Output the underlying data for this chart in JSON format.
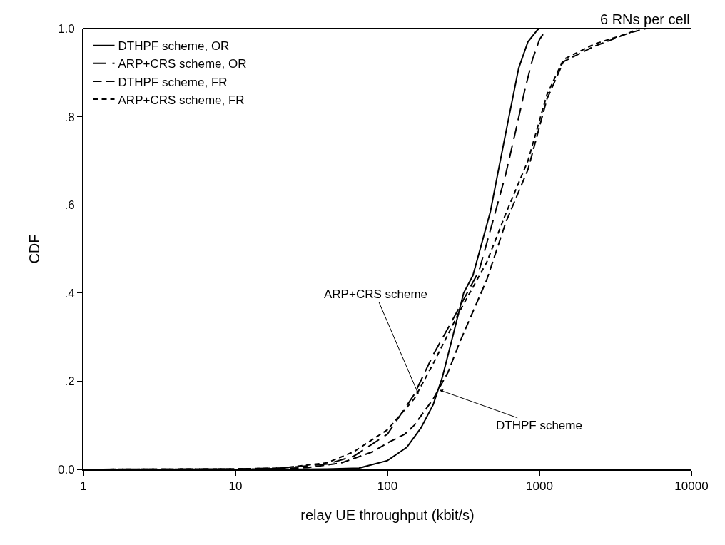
{
  "chart_data": {
    "type": "line",
    "xlabel": "relay UE throughput (kbit/s)",
    "ylabel": "CDF",
    "log": "x",
    "xlim": [
      1,
      10000
    ],
    "xticks": [
      1,
      10,
      100,
      1000,
      10000
    ],
    "ylim": [
      0,
      1
    ],
    "yticks": [
      {
        "value": 0,
        "label": "0.0"
      },
      {
        "value": 0.2,
        "label": ".2"
      },
      {
        "value": 0.4,
        "label": ".4"
      },
      {
        "value": 0.6,
        "label": ".6"
      },
      {
        "value": 0.8,
        "label": ".8"
      },
      {
        "value": 1,
        "label": "1.0"
      }
    ],
    "legend": "top left",
    "marker": "none",
    "series": [
      {
        "name": "DTHPF scheme, OR",
        "color": "#000000",
        "line_style": "solid",
        "x": [
          1,
          20,
          40,
          65,
          100,
          134,
          166,
          200,
          230,
          275,
          317,
          365,
          475,
          545,
          630,
          730,
          840,
          970,
          1000
        ],
        "values": [
          0,
          0,
          0.001,
          0.003,
          0.02,
          0.05,
          0.094,
          0.147,
          0.21,
          0.315,
          0.4,
          0.44,
          0.584,
          0.69,
          0.8,
          0.91,
          0.97,
          0.997,
          1.0
        ]
      },
      {
        "name": "ARP+CRS scheme, OR",
        "color": "#000000",
        "line_style": "dashed",
        "x": [
          1,
          10,
          20,
          40,
          60,
          100,
          150,
          200,
          250,
          300,
          400,
          500,
          600,
          700,
          800,
          900,
          1000,
          1120
        ],
        "values": [
          0,
          0.001,
          0.003,
          0.012,
          0.03,
          0.08,
          0.17,
          0.26,
          0.32,
          0.37,
          0.45,
          0.57,
          0.67,
          0.77,
          0.86,
          0.93,
          0.975,
          1.0
        ]
      },
      {
        "name": "DTHPF scheme, FR",
        "color": "#000000",
        "line_style": "dashed",
        "x": [
          1.5,
          15,
          30,
          50,
          80,
          100,
          130,
          150,
          200,
          250,
          300,
          450,
          600,
          840,
          1120,
          1440,
          2300,
          3900,
          5000
        ],
        "values": [
          0,
          0.001,
          0.004,
          0.015,
          0.04,
          0.06,
          0.08,
          0.1,
          0.16,
          0.22,
          0.29,
          0.43,
          0.56,
          0.68,
          0.84,
          0.925,
          0.96,
          0.99,
          1.0
        ]
      },
      {
        "name": "ARP+CRS scheme, FR",
        "color": "#000000",
        "line_style": "dashed",
        "x": [
          1,
          10,
          20,
          40,
          60,
          100,
          150,
          200,
          300,
          450,
          600,
          840,
          1120,
          1440,
          2300,
          3900,
          4400
        ],
        "values": [
          0,
          0.001,
          0.003,
          0.015,
          0.04,
          0.09,
          0.16,
          0.24,
          0.36,
          0.47,
          0.58,
          0.7,
          0.85,
          0.93,
          0.965,
          0.99,
          1.0
        ]
      }
    ],
    "annotations": [
      "6 RNs per cell",
      {
        "text": "ARP+CRS scheme",
        "x": 160,
        "y": 0.17
      },
      {
        "text": "DTHPF scheme",
        "x": 220,
        "y": 0.18
      }
    ]
  }
}
